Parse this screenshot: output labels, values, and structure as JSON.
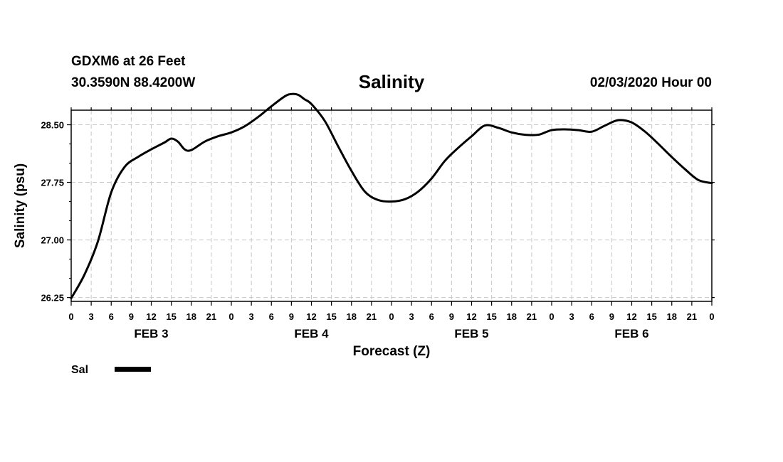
{
  "header": {
    "station": "GDXM6 at 26 Feet",
    "coords": "30.3590N 88.4200W",
    "title": "Salinity",
    "date": "02/03/2020 Hour 00"
  },
  "chart_data": {
    "type": "line",
    "title": "Salinity",
    "xlabel": "Forecast (Z)",
    "ylabel": "Salinity (psu)",
    "ylim": [
      26.2,
      28.69
    ],
    "yticks": [
      "26.25",
      "27.00",
      "27.75",
      "28.50"
    ],
    "x_hours_range": [
      0,
      96
    ],
    "xtick_labels": [
      "0",
      "3",
      "6",
      "9",
      "12",
      "15",
      "18",
      "21",
      "0",
      "3",
      "6",
      "9",
      "12",
      "15",
      "18",
      "21",
      "0",
      "3",
      "6",
      "9",
      "12",
      "15",
      "18",
      "21",
      "0",
      "3",
      "6",
      "9",
      "12",
      "15",
      "18",
      "21",
      "0"
    ],
    "date_labels": [
      "FEB 3",
      "FEB 4",
      "FEB 5",
      "FEB 6"
    ],
    "grid": true,
    "legend_position": "bottom-left",
    "series": [
      {
        "name": "Sal",
        "color": "#000000",
        "x": [
          0,
          2,
          4,
          6,
          8,
          10,
          12,
          14,
          15,
          16,
          17,
          18,
          20,
          22,
          24,
          26,
          28,
          30,
          32,
          33,
          34,
          35,
          36,
          38,
          40,
          42,
          44,
          46,
          48,
          50,
          52,
          54,
          56,
          58,
          60,
          62,
          64,
          66,
          68,
          70,
          72,
          74,
          76,
          78,
          80,
          82,
          84,
          86,
          88,
          90,
          92,
          94,
          96
        ],
        "values": [
          26.24,
          26.55,
          26.98,
          27.62,
          27.95,
          28.08,
          28.18,
          28.27,
          28.32,
          28.28,
          28.18,
          28.17,
          28.28,
          28.35,
          28.4,
          28.48,
          28.6,
          28.74,
          28.87,
          28.9,
          28.89,
          28.83,
          28.77,
          28.55,
          28.22,
          27.9,
          27.63,
          27.52,
          27.5,
          27.53,
          27.63,
          27.8,
          28.03,
          28.2,
          28.35,
          28.49,
          28.46,
          28.4,
          28.37,
          28.37,
          28.43,
          28.44,
          28.43,
          28.41,
          28.49,
          28.56,
          28.53,
          28.41,
          28.25,
          28.08,
          27.92,
          27.78,
          27.74
        ]
      }
    ]
  }
}
